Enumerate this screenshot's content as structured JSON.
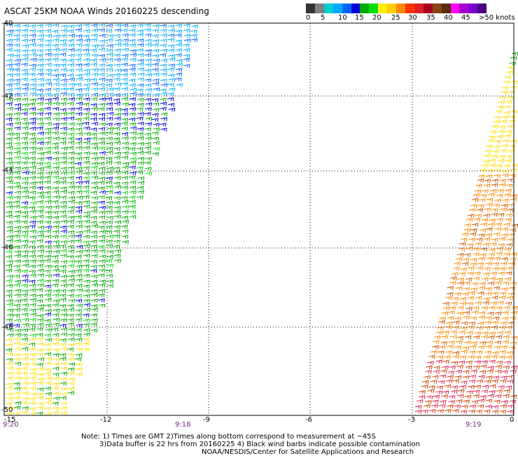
{
  "title": "ASCAT 25KM NOAA Winds 20160225 descending",
  "legend": {
    "colors": [
      "#333333",
      "#7f7f7f",
      "#00cccc",
      "#00aaff",
      "#0066ff",
      "#0000dd",
      "#00aa00",
      "#00dd00",
      "#ffee00",
      "#ffcc00",
      "#ff8800",
      "#ff3300",
      "#dd2222",
      "#aa0022",
      "#8b4513",
      "#5a2b0a",
      "#ff00ff",
      "#aa00cc",
      "#7a00cc",
      "#4b0080"
    ],
    "labels": [
      "0",
      "5",
      "10",
      "15",
      "20",
      "25",
      "30",
      "35",
      "40",
      "45",
      ">50 knots"
    ]
  },
  "map": {
    "lon_labels": [
      "-15",
      "-12",
      "-9",
      "-6",
      "-3",
      "0"
    ],
    "lat_labels": [
      "-40",
      "-42",
      "-44",
      "-46",
      "-48",
      "-50"
    ],
    "pass_times": [
      "9:20",
      "9:18",
      "9:19"
    ]
  },
  "notes": [
    "Note: 1) Times are GMT 2)Times along bottom correspond to measurement at ~45S",
    "3)Data buffer is 22 hrs from 20160225 4) Black wind barbs indicate possible contamination",
    "NOAA/NESDIS/Center for Satellite Applications and Research"
  ]
}
